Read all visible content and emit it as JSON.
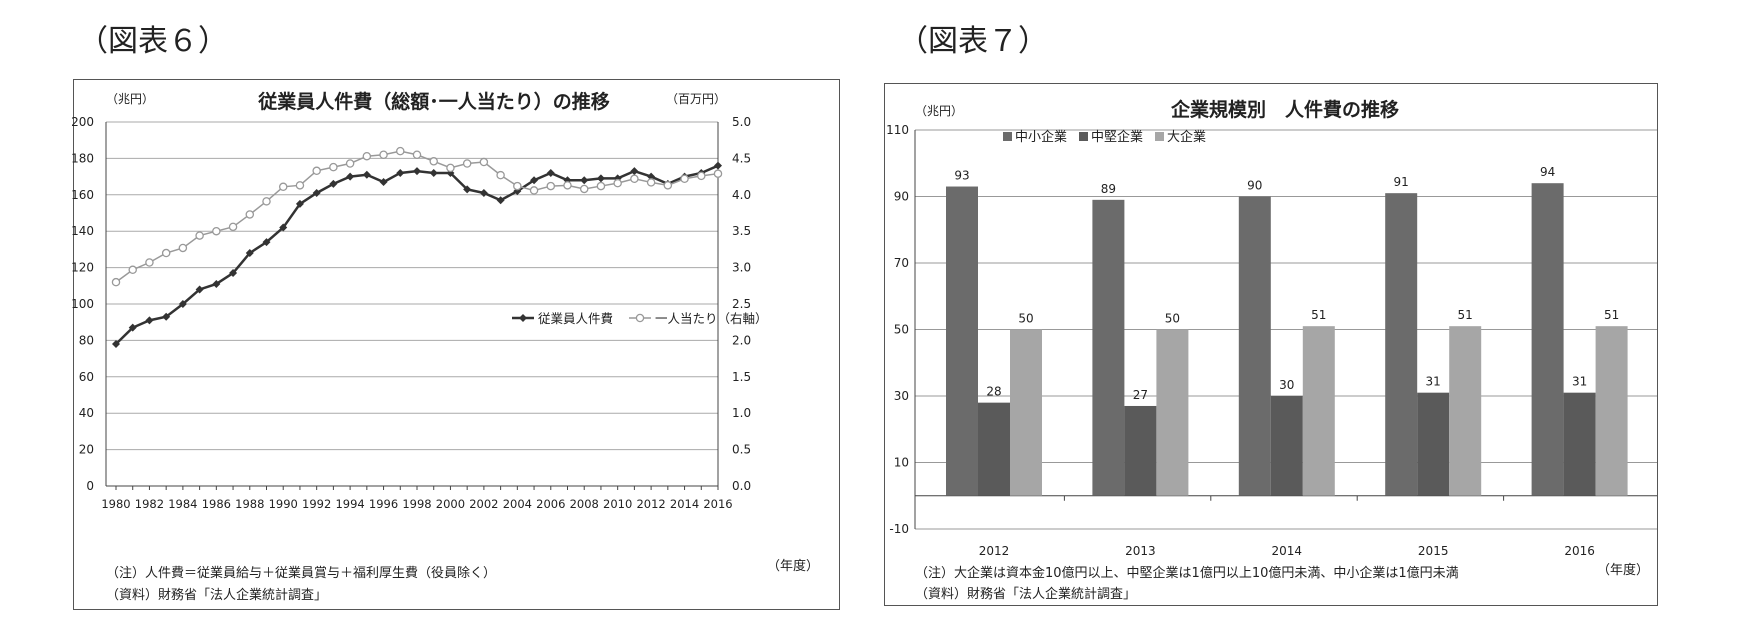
{
  "figure6": {
    "label": "（図表６）",
    "chart_data": {
      "type": "line",
      "title": "従業員人件費（総額･一人当たり）の推移",
      "left_unit": "（兆円）",
      "right_unit": "（百万円）",
      "xlabel": "（年度）",
      "x": [
        1980,
        1981,
        1982,
        1983,
        1984,
        1985,
        1986,
        1987,
        1988,
        1989,
        1990,
        1991,
        1992,
        1993,
        1994,
        1995,
        1996,
        1997,
        1998,
        1999,
        2000,
        2001,
        2002,
        2003,
        2004,
        2005,
        2006,
        2007,
        2008,
        2009,
        2010,
        2011,
        2012,
        2013,
        2014,
        2015,
        2016
      ],
      "x_tick_labels": [
        "1980",
        "1982",
        "1984",
        "1986",
        "1988",
        "1990",
        "1992",
        "1994",
        "1996",
        "1998",
        "2000",
        "2002",
        "2004",
        "2006",
        "2008",
        "2010",
        "2012",
        "2014",
        "2016"
      ],
      "ylim_left": [
        0,
        200
      ],
      "ylim_right": [
        0.0,
        5.0
      ],
      "y_left_ticks": [
        "0",
        "20",
        "40",
        "60",
        "80",
        "100",
        "120",
        "140",
        "160",
        "180",
        "200"
      ],
      "y_right_ticks": [
        "0.0",
        "0.5",
        "1.0",
        "1.5",
        "2.0",
        "2.5",
        "3.0",
        "3.5",
        "4.0",
        "4.5",
        "5.0"
      ],
      "grid": true,
      "legend_position": "center-right",
      "series": [
        {
          "name": "従業員人件費",
          "axis": "left",
          "marker": "diamond",
          "color": "#333333",
          "values": [
            78,
            87,
            91,
            93,
            100,
            108,
            111,
            117,
            128,
            134,
            142,
            155,
            161,
            166,
            170,
            171,
            167,
            172,
            173,
            172,
            172,
            163,
            161,
            157,
            162,
            168,
            172,
            168,
            168,
            169,
            169,
            173,
            170,
            166,
            170,
            172,
            176
          ]
        },
        {
          "name": "一人当たり（右軸）",
          "axis": "right",
          "marker": "open-circle",
          "color": "#999999",
          "values": [
            2.8,
            2.97,
            3.07,
            3.2,
            3.27,
            3.44,
            3.5,
            3.56,
            3.73,
            3.91,
            4.11,
            4.13,
            4.33,
            4.38,
            4.43,
            4.53,
            4.55,
            4.6,
            4.55,
            4.46,
            4.37,
            4.43,
            4.45,
            4.27,
            4.12,
            4.06,
            4.12,
            4.13,
            4.08,
            4.12,
            4.16,
            4.22,
            4.17,
            4.13,
            4.22,
            4.26,
            4.29
          ]
        }
      ]
    },
    "note": "（注）人件費＝従業員給与＋従業員賞与＋福利厚生費（役員除く）",
    "source": "（資料）財務省「法人企業統計調査」"
  },
  "figure7": {
    "label": "（図表７）",
    "chart_data": {
      "type": "bar",
      "title": "企業規模別　人件費の推移",
      "ylabel": "（兆円）",
      "xlabel": "（年度）",
      "categories": [
        "2012",
        "2013",
        "2014",
        "2015",
        "2016"
      ],
      "ylim": [
        -10,
        110
      ],
      "y_ticks": [
        "-10",
        "10",
        "30",
        "50",
        "70",
        "90",
        "110"
      ],
      "grid": true,
      "legend_position": "top-left",
      "series": [
        {
          "name": "中小企業",
          "color": "#6b6b6b",
          "values": [
            93,
            89,
            90,
            91,
            94
          ]
        },
        {
          "name": "中堅企業",
          "color": "#5a5a5a",
          "values": [
            28,
            27,
            30,
            31,
            31
          ]
        },
        {
          "name": "大企業",
          "color": "#a6a6a6",
          "values": [
            50,
            50,
            51,
            51,
            51
          ]
        }
      ]
    },
    "note": "（注）大企業は資本金10億円以上、中堅企業は1億円以上10億円未満、中小企業は1億円未満",
    "source": "（資料）財務省「法人企業統計調査」"
  }
}
